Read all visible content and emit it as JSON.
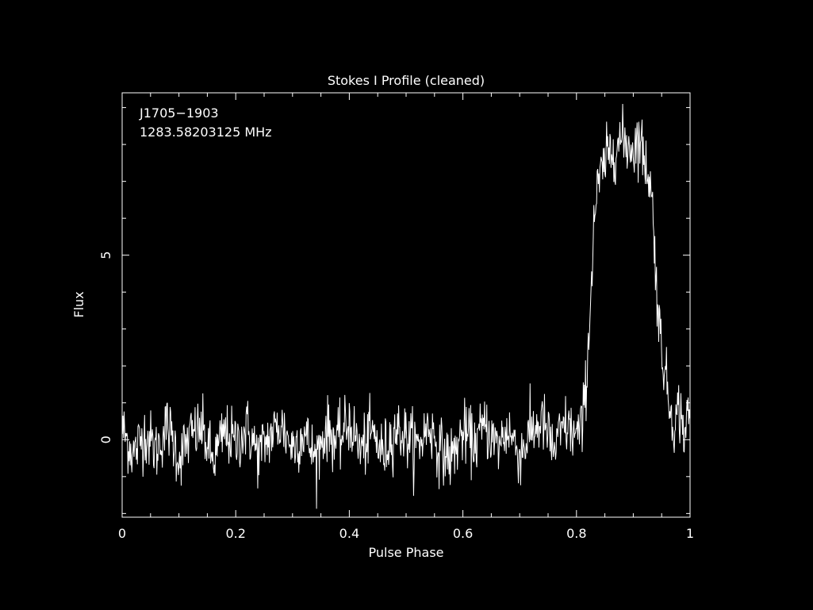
{
  "chart_data": {
    "type": "line",
    "title": "Stokes I Profile (cleaned)",
    "xlabel": "Pulse Phase",
    "ylabel": "Flux",
    "annotations": [
      "J1705−1903",
      "1283.58203125 MHz"
    ],
    "xlim": [
      0,
      1
    ],
    "ylim": [
      -2.1,
      9.4
    ],
    "x_ticks": [
      {
        "value": 0,
        "label": "0"
      },
      {
        "value": 0.2,
        "label": "0.2"
      },
      {
        "value": 0.4,
        "label": "0.4"
      },
      {
        "value": 0.6,
        "label": "0.6"
      },
      {
        "value": 0.8,
        "label": "0.8"
      },
      {
        "value": 1,
        "label": "1"
      }
    ],
    "y_ticks": [
      {
        "value": 0,
        "label": "0"
      },
      {
        "value": 5,
        "label": "5"
      }
    ],
    "grid": false,
    "colors": {
      "background": "#000000",
      "foreground": "#ffffff"
    },
    "series": [
      {
        "x": [
          0.0,
          0.02,
          0.04,
          0.06,
          0.08,
          0.1,
          0.12,
          0.14,
          0.16,
          0.18,
          0.2,
          0.22,
          0.24,
          0.26,
          0.28,
          0.3,
          0.32,
          0.34,
          0.36,
          0.38,
          0.4,
          0.42,
          0.44,
          0.46,
          0.48,
          0.5,
          0.52,
          0.54,
          0.56,
          0.58,
          0.6,
          0.62,
          0.64,
          0.66,
          0.68,
          0.7,
          0.72,
          0.74,
          0.76,
          0.78,
          0.8,
          0.81,
          0.815,
          0.82,
          0.825,
          0.83,
          0.835,
          0.84,
          0.845,
          0.85,
          0.86,
          0.87,
          0.88,
          0.89,
          0.9,
          0.91,
          0.92,
          0.93,
          0.935,
          0.94,
          0.945,
          0.95,
          0.955,
          0.96,
          0.965,
          0.97,
          0.975,
          0.98,
          0.99,
          1.0
        ],
        "values": [
          0.3,
          -0.4,
          0.2,
          -0.3,
          0.4,
          -0.5,
          0.1,
          0.3,
          -0.6,
          0.2,
          -0.1,
          0.3,
          -0.4,
          0.1,
          0.4,
          -0.2,
          0.2,
          -0.5,
          0.3,
          -0.1,
          0.5,
          -0.3,
          0.2,
          -0.4,
          0.3,
          0.1,
          -0.2,
          0.4,
          -0.3,
          -0.5,
          0.2,
          -0.1,
          0.4,
          -0.2,
          0.3,
          -0.4,
          0.2,
          0.5,
          -0.3,
          0.4,
          0.1,
          0.3,
          1.2,
          2.3,
          3.8,
          5.8,
          6.5,
          7.0,
          7.2,
          7.5,
          7.8,
          8.0,
          8.1,
          8.0,
          7.9,
          8.2,
          7.6,
          7.0,
          6.0,
          4.5,
          3.2,
          2.5,
          2.0,
          1.3,
          0.9,
          0.6,
          0.4,
          0.9,
          0.2,
          0.8
        ]
      }
    ]
  }
}
